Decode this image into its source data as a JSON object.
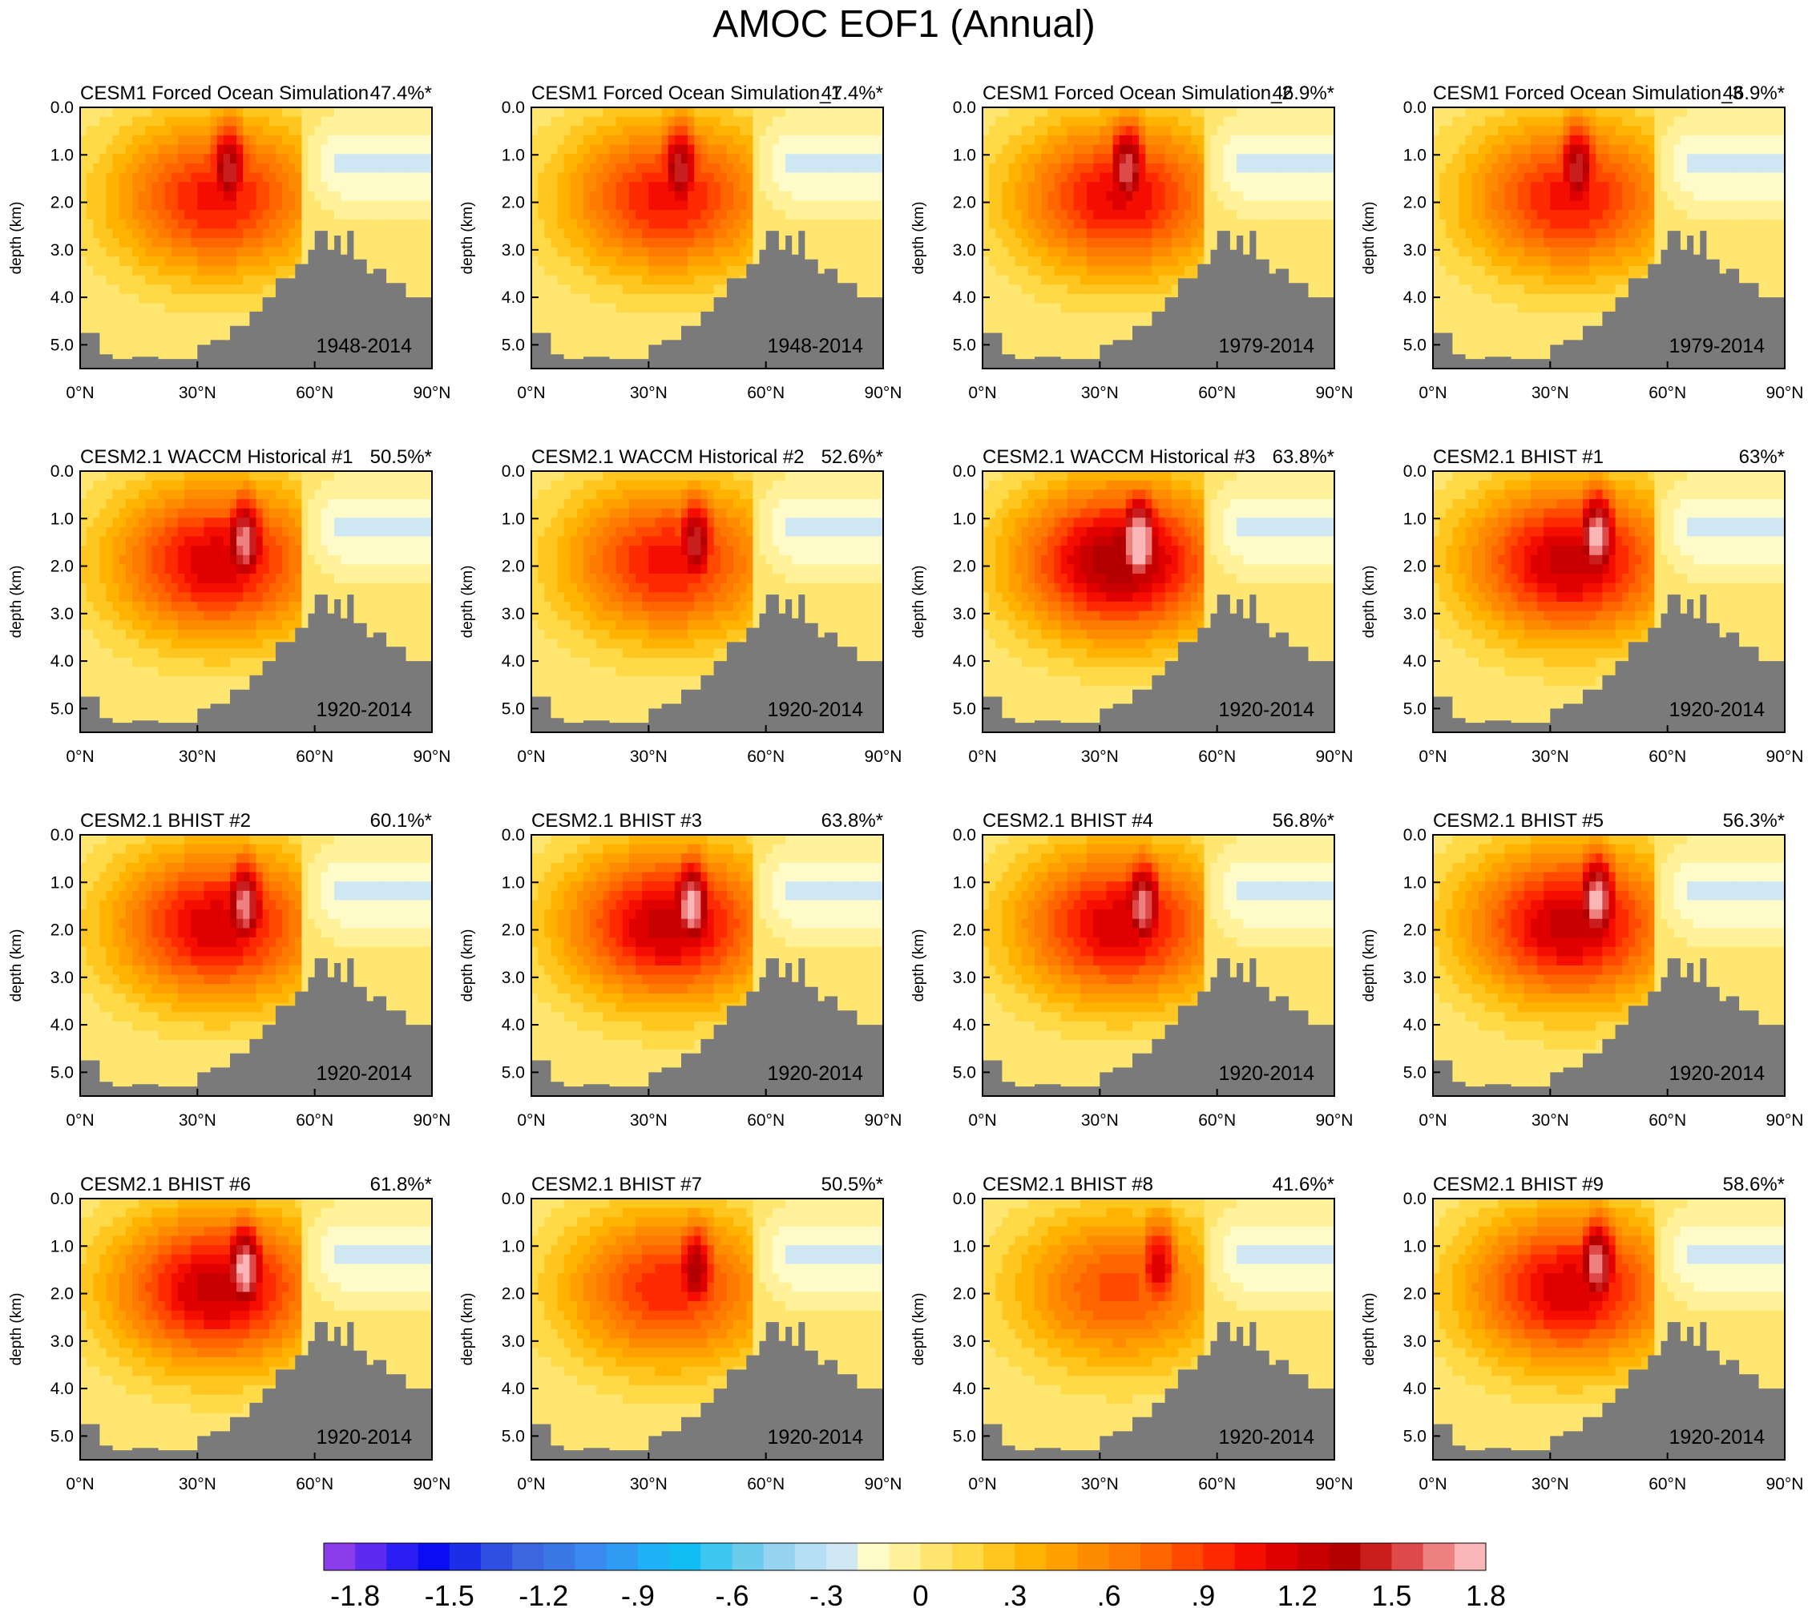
{
  "title": "AMOC EOF1 (Annual)",
  "chart_data": {
    "type": "contour-panel-grid",
    "x_axis": {
      "label": "",
      "ticks": [
        "0°N",
        "30°N",
        "60°N",
        "90°N"
      ],
      "range": [
        0,
        90
      ]
    },
    "y_axis": {
      "label": "depth (km)",
      "ticks": [
        "0.0",
        "1.0",
        "2.0",
        "3.0",
        "4.0",
        "5.0"
      ],
      "range": [
        0,
        5.5
      ]
    },
    "panels": [
      {
        "title": "CESM1 Forced Ocean Simulation",
        "variance": "47.4%*",
        "period": "1948-2014",
        "peak": {
          "lat": 38,
          "depth": 1.3,
          "value": 1.5
        }
      },
      {
        "title": "CESM1 Forced Ocean Simulation_1",
        "variance": "47.4%*",
        "period": "1948-2014",
        "peak": {
          "lat": 38,
          "depth": 1.3,
          "value": 1.5
        }
      },
      {
        "title": "CESM1 Forced Ocean Simulation_2",
        "variance": "46.9%*",
        "period": "1979-2014",
        "peak": {
          "lat": 37,
          "depth": 1.3,
          "value": 1.6
        }
      },
      {
        "title": "CESM1 Forced Ocean Simulation_3",
        "variance": "46.9%*",
        "period": "1979-2014",
        "peak": {
          "lat": 37,
          "depth": 1.3,
          "value": 1.5
        }
      },
      {
        "title": "CESM2.1 WACCM Historical #1",
        "variance": "50.5%*",
        "period": "1920-2014",
        "peak": {
          "lat": 42,
          "depth": 1.5,
          "value": 1.7
        }
      },
      {
        "title": "CESM2.1 WACCM Historical #2",
        "variance": "52.6%*",
        "period": "1920-2014",
        "peak": {
          "lat": 42,
          "depth": 1.5,
          "value": 1.5
        }
      },
      {
        "title": "CESM2.1 WACCM Historical #3",
        "variance": "63.8%*",
        "period": "1920-2014",
        "peak": {
          "lat": 40,
          "depth": 1.5,
          "value": 2.0
        }
      },
      {
        "title": "CESM2.1 BHIST #1",
        "variance": "63%*",
        "period": "1920-2014",
        "peak": {
          "lat": 42,
          "depth": 1.4,
          "value": 1.8
        }
      },
      {
        "title": "CESM2.1 BHIST #2",
        "variance": "60.1%*",
        "period": "1920-2014",
        "peak": {
          "lat": 42,
          "depth": 1.5,
          "value": 1.7
        }
      },
      {
        "title": "CESM2.1 BHIST #3",
        "variance": "63.8%*",
        "period": "1920-2014",
        "peak": {
          "lat": 41,
          "depth": 1.5,
          "value": 1.8
        }
      },
      {
        "title": "CESM2.1 BHIST #4",
        "variance": "56.8%*",
        "period": "1920-2014",
        "peak": {
          "lat": 41,
          "depth": 1.5,
          "value": 1.7
        }
      },
      {
        "title": "CESM2.1 BHIST #5",
        "variance": "56.3%*",
        "period": "1920-2014",
        "peak": {
          "lat": 42,
          "depth": 1.4,
          "value": 1.8
        }
      },
      {
        "title": "CESM2.1 BHIST #6",
        "variance": "61.8%*",
        "period": "1920-2014",
        "peak": {
          "lat": 42,
          "depth": 1.5,
          "value": 1.8
        }
      },
      {
        "title": "CESM2.1 BHIST #7",
        "variance": "50.5%*",
        "period": "1920-2014",
        "peak": {
          "lat": 42,
          "depth": 1.5,
          "value": 1.4
        }
      },
      {
        "title": "CESM2.1 BHIST #8",
        "variance": "41.6%*",
        "period": "1920-2014",
        "peak": {
          "lat": 45,
          "depth": 1.4,
          "value": 1.2
        }
      },
      {
        "title": "CESM2.1 BHIST #9",
        "variance": "58.6%*",
        "period": "1920-2014",
        "peak": {
          "lat": 42,
          "depth": 1.4,
          "value": 1.7
        }
      }
    ],
    "colorbar": {
      "levels": [
        -1.8,
        -1.5,
        -1.2,
        -0.9,
        -0.6,
        -0.3,
        0,
        0.3,
        0.6,
        0.9,
        1.2,
        1.5,
        1.8
      ],
      "labels": [
        "-1.8",
        "-1.5",
        "-1.2",
        "-.9",
        "-.6",
        "-.3",
        "0",
        ".3",
        ".6",
        ".9",
        "1.2",
        "1.5",
        "1.8"
      ],
      "colors": [
        "#8a3bea",
        "#5d2bf0",
        "#2a1ef5",
        "#0a0cf2",
        "#1c2ee8",
        "#2e4fe0",
        "#3a66e0",
        "#3a78e6",
        "#3a8aef",
        "#2f9bf3",
        "#1fb0f6",
        "#11bdf2",
        "#3cc6f0",
        "#6dcbee",
        "#94d4f1",
        "#b4dff3",
        "#cfe7f3",
        "#fffbc9",
        "#fff29a",
        "#ffe670",
        "#ffda46",
        "#ffc61f",
        "#ffb300",
        "#ffa000",
        "#ff8c00",
        "#ff7a00",
        "#ff6600",
        "#ff4a00",
        "#ff2a00",
        "#f50e00",
        "#e00000",
        "#c80000",
        "#b40000",
        "#c81e1e",
        "#de4a4a",
        "#ee8080",
        "#fbb7b7"
      ],
      "land_color": "#7a7a7a",
      "contour_line_color": "#222222"
    }
  }
}
